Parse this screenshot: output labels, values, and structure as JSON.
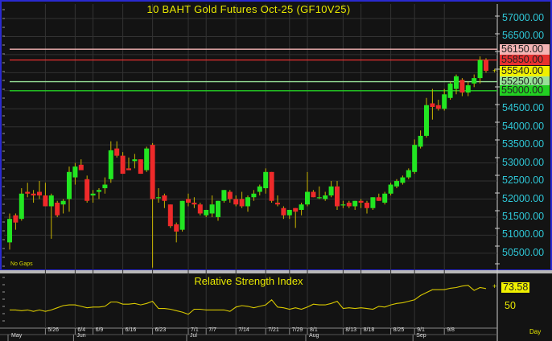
{
  "chart_data": {
    "type": "candlestick",
    "title": "10 BAHT Gold Futures Oct-25 (GF10V25)",
    "note": "No Gaps",
    "ylim": [
      50100,
      57300
    ],
    "y_tick_labels": [
      "57000.00",
      "56500.00",
      "54500.00",
      "54000.00",
      "53500.00",
      "53000.00",
      "52500.00",
      "52000.00",
      "51500.00",
      "51000.00",
      "50500.00"
    ],
    "y_ticks": [
      57000,
      56500,
      54500,
      54000,
      53500,
      53000,
      52500,
      52000,
      51500,
      51000,
      50500
    ],
    "grid": true,
    "colors": {
      "up": "#22e622",
      "down": "#ee2a2a",
      "wick": "#c8b400",
      "background": "#131313",
      "grid": "#333333"
    },
    "candles_ohlc": [
      [
        50800,
        51600,
        50600,
        51450
      ],
      [
        51550,
        51600,
        51150,
        51350
      ],
      [
        51450,
        52300,
        51400,
        52150
      ],
      [
        52200,
        52450,
        52050,
        52150
      ],
      [
        52150,
        52250,
        51900,
        52100
      ],
      [
        52200,
        52500,
        52000,
        52100
      ],
      [
        52100,
        52450,
        51800,
        51800
      ],
      [
        51800,
        52150,
        50900,
        52100
      ],
      [
        51900,
        51950,
        51500,
        51550
      ],
      [
        51850,
        52000,
        51600,
        51950
      ],
      [
        52000,
        52900,
        51650,
        52750
      ],
      [
        52600,
        53000,
        52400,
        52900
      ],
      [
        52950,
        53100,
        52900,
        52800
      ],
      [
        52550,
        52650,
        51900,
        51950
      ],
      [
        52100,
        52250,
        51900,
        52150
      ],
      [
        52200,
        52300,
        52000,
        52250
      ],
      [
        52300,
        52600,
        52150,
        52400
      ],
      [
        52550,
        53600,
        52450,
        53350
      ],
      [
        53400,
        53600,
        53150,
        53200
      ],
      [
        53200,
        53300,
        52700,
        52700
      ],
      [
        52850,
        53150,
        52800,
        52800
      ],
      [
        53050,
        53250,
        52850,
        53100
      ],
      [
        53100,
        53100,
        52700,
        52700
      ],
      [
        52800,
        53450,
        52750,
        53400
      ],
      [
        53500,
        53550,
        50100,
        52000
      ],
      [
        52050,
        52300,
        51900,
        52050
      ],
      [
        52100,
        52150,
        51750,
        51950
      ],
      [
        51850,
        51850,
        51200,
        51250
      ],
      [
        51300,
        51350,
        50800,
        51100
      ],
      [
        51150,
        51950,
        51100,
        51950
      ],
      [
        52000,
        52150,
        51800,
        51900
      ],
      [
        51900,
        52050,
        51750,
        51850
      ],
      [
        51850,
        51900,
        51550,
        51600
      ],
      [
        51550,
        51700,
        51500,
        51700
      ],
      [
        51600,
        52100,
        51500,
        51850
      ],
      [
        51500,
        51950,
        51400,
        51950
      ],
      [
        51950,
        52250,
        51900,
        52250
      ],
      [
        52200,
        52250,
        51900,
        52000
      ],
      [
        52000,
        52100,
        51800,
        51850
      ],
      [
        52000,
        52200,
        51750,
        51800
      ],
      [
        51800,
        52100,
        51650,
        52050
      ],
      [
        52050,
        52250,
        51950,
        52150
      ],
      [
        52200,
        52400,
        52100,
        52350
      ],
      [
        52300,
        52850,
        52150,
        52750
      ],
      [
        52750,
        52750,
        51900,
        51950
      ],
      [
        51900,
        52100,
        51800,
        51850
      ],
      [
        51750,
        51800,
        51450,
        51550
      ],
      [
        51550,
        51700,
        51450,
        51700
      ],
      [
        51750,
        51750,
        51200,
        51650
      ],
      [
        51700,
        51900,
        51550,
        51850
      ],
      [
        51850,
        52750,
        51800,
        52200
      ],
      [
        52200,
        52250,
        52050,
        52050
      ],
      [
        52050,
        52350,
        52000,
        52050
      ],
      [
        52000,
        52200,
        51950,
        52100
      ],
      [
        52100,
        52500,
        52050,
        52350
      ],
      [
        52350,
        52500,
        51700,
        51800
      ],
      [
        51850,
        51950,
        51750,
        51850
      ],
      [
        51900,
        51950,
        51750,
        51800
      ],
      [
        51800,
        51950,
        51700,
        51950
      ],
      [
        51950,
        52000,
        51750,
        51900
      ],
      [
        51900,
        51950,
        51600,
        51750
      ],
      [
        51750,
        52050,
        51700,
        52050
      ],
      [
        52050,
        52150,
        51950,
        51950
      ],
      [
        51900,
        52200,
        51850,
        52150
      ],
      [
        52150,
        52450,
        52100,
        52400
      ],
      [
        52350,
        52550,
        52300,
        52500
      ],
      [
        52450,
        52650,
        52400,
        52600
      ],
      [
        52600,
        52850,
        52550,
        52800
      ],
      [
        52750,
        53650,
        52700,
        53500
      ],
      [
        53450,
        53900,
        53400,
        53750
      ],
      [
        53750,
        54800,
        53700,
        54600
      ],
      [
        54650,
        55050,
        54200,
        54550
      ],
      [
        54600,
        54750,
        54450,
        54500
      ],
      [
        54500,
        55050,
        54450,
        54900
      ],
      [
        54800,
        55250,
        54750,
        55200
      ],
      [
        55050,
        55450,
        54900,
        55400
      ],
      [
        55300,
        55350,
        54850,
        54950
      ],
      [
        54950,
        55250,
        54850,
        55150
      ],
      [
        55200,
        55450,
        55100,
        55350
      ],
      [
        55350,
        55950,
        55200,
        55850
      ],
      [
        55850,
        55900,
        55500,
        55550
      ]
    ],
    "horizontal_lines": [
      {
        "value": 56150,
        "label": "56150.00",
        "color": "#f4b4b4"
      },
      {
        "value": 55850,
        "label": "55850.00",
        "color": "#e83030"
      },
      {
        "value": 55250,
        "label": "55250.00",
        "color": "#98e098"
      },
      {
        "value": 55000,
        "label": "55000.00",
        "color": "#22d022"
      }
    ],
    "last_price": {
      "value": 55540,
      "label": "55540.00",
      "color": "#f0f000"
    },
    "x_ticks": [
      {
        "label": "5/26",
        "index": 6
      },
      {
        "label": "6/4",
        "index": 11
      },
      {
        "label": "6/9",
        "index": 14
      },
      {
        "label": "6/16",
        "index": 19
      },
      {
        "label": "6/23",
        "index": 24
      },
      {
        "label": "7/1",
        "index": 30
      },
      {
        "label": "7/7",
        "index": 33
      },
      {
        "label": "7/14",
        "index": 38
      },
      {
        "label": "7/21",
        "index": 43
      },
      {
        "label": "7/29",
        "index": 47
      },
      {
        "label": "8/1",
        "index": 50
      },
      {
        "label": "8/13",
        "index": 56
      },
      {
        "label": "8/18",
        "index": 59
      },
      {
        "label": "8/25",
        "index": 64
      },
      {
        "label": "9/1",
        "index": 68
      },
      {
        "label": "9/8",
        "index": 73
      }
    ],
    "months": [
      {
        "label": "May",
        "index": 0
      },
      {
        "label": "Jun",
        "index": 11
      },
      {
        "label": "Jul",
        "index": 30
      },
      {
        "label": "Aug",
        "index": 50
      },
      {
        "label": "Sep",
        "index": 68
      }
    ],
    "period": "Day",
    "rsi": {
      "title": "Relative Strength Index",
      "current": "73.58",
      "level_label": "50",
      "color": "#d8c800",
      "values": [
        44,
        44,
        43,
        44,
        42,
        44,
        42,
        44,
        47,
        50,
        51,
        51,
        49,
        47,
        48,
        48,
        49,
        55,
        55,
        52,
        52,
        53,
        51,
        53,
        56,
        46,
        46,
        45,
        43,
        41,
        38,
        45,
        45,
        44,
        44,
        44,
        44,
        42,
        48,
        50,
        49,
        47,
        49,
        51,
        58,
        48,
        47,
        45,
        47,
        45,
        48,
        52,
        51,
        51,
        53,
        56,
        46,
        47,
        46,
        47,
        46,
        45,
        49,
        48,
        51,
        53,
        54,
        56,
        58,
        64,
        68,
        72,
        72,
        72,
        74,
        75,
        77,
        78,
        71,
        75,
        73.58
      ]
    }
  }
}
